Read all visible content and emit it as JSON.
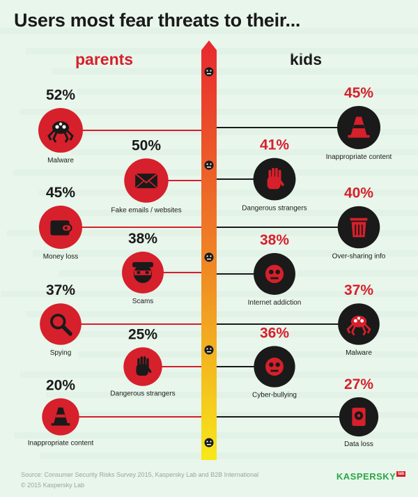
{
  "title": "Users most fear threats to their...",
  "colors": {
    "accent": "#d6202b",
    "dark": "#1a1a1a",
    "gradient_top": "#e8282f",
    "gradient_mid": "#f08a24",
    "gradient_bottom": "#f7e81a",
    "brand": "#29a745"
  },
  "chart_data": {
    "type": "bar",
    "unit": "%",
    "series": [
      {
        "name": "parents",
        "items": [
          {
            "label": "Malware",
            "value": 52,
            "icon": "spider-icon"
          },
          {
            "label": "Fake emails / websites",
            "value": 50,
            "icon": "envelope-icon"
          },
          {
            "label": "Money loss",
            "value": 45,
            "icon": "wallet-icon"
          },
          {
            "label": "Scams",
            "value": 38,
            "icon": "masked-thief-icon"
          },
          {
            "label": "Spying",
            "value": 37,
            "icon": "magnifier-icon"
          },
          {
            "label": "Dangerous strangers",
            "value": 25,
            "icon": "stop-hand-icon"
          },
          {
            "label": "Inappropriate content",
            "value": 20,
            "icon": "traffic-cone-icon"
          }
        ]
      },
      {
        "name": "kids",
        "items": [
          {
            "label": "Inappropriate content",
            "value": 45,
            "icon": "traffic-cone-icon"
          },
          {
            "label": "Dangerous strangers",
            "value": 41,
            "icon": "stop-hand-icon"
          },
          {
            "label": "Over-sharing info",
            "value": 40,
            "icon": "trash-can-icon"
          },
          {
            "label": "Internet addiction",
            "value": 38,
            "icon": "addicted-face-icon"
          },
          {
            "label": "Malware",
            "value": 37,
            "icon": "spider-icon"
          },
          {
            "label": "Cyber-bullying",
            "value": 36,
            "icon": "bullied-face-icon"
          },
          {
            "label": "Data loss",
            "value": 27,
            "icon": "hard-drive-icon"
          }
        ]
      }
    ]
  },
  "footer": {
    "source": "Source: Consumer Security Risks Survey 2015, Kaspersky Lab and B2B International",
    "copyright": "© 2015 Kaspersky Lab"
  },
  "brand": {
    "name": "KASPERSKY",
    "badge": "lab"
  }
}
